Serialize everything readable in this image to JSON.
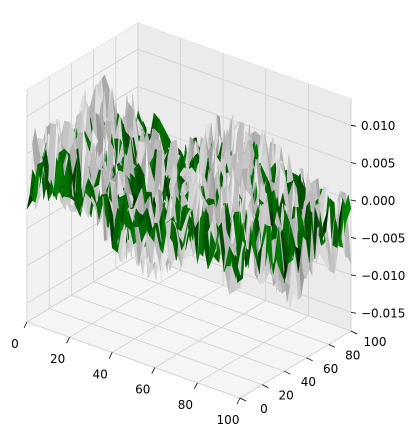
{
  "chart_data": {
    "type": "surface",
    "projection": "3d",
    "title": "",
    "xlabel": "",
    "ylabel": "",
    "zlabel": "",
    "xlim": [
      0,
      100
    ],
    "ylim": [
      0,
      100
    ],
    "zlim": [
      -0.0175,
      0.0135
    ],
    "grid": true,
    "x_ticks": [
      "0",
      "20",
      "40",
      "60",
      "80",
      "100"
    ],
    "y_ticks": [
      "0",
      "20",
      "40",
      "60",
      "80",
      "100"
    ],
    "z_ticks": [
      "0.010",
      "0.005",
      "0.000",
      "−0.005",
      "−0.010",
      "−0.015"
    ],
    "z_tick_values": [
      0.01,
      0.005,
      0.0,
      -0.005,
      -0.01,
      -0.015
    ],
    "series": [
      {
        "kind": "rough-surface",
        "color": "#c8c8c8",
        "amplitude": 0.009,
        "mean": 0.0
      },
      {
        "kind": "rough-surface",
        "color": "#006400",
        "amplitude": 0.006,
        "mean": 0.0
      }
    ],
    "colors": {
      "pane_left": "#f2f2f2",
      "pane_back": "#ebebeb",
      "pane_floor": "#f5f5f5",
      "surface_gray": "#c8c8c8",
      "surface_green": "#006400",
      "shadow": "#000000"
    }
  }
}
